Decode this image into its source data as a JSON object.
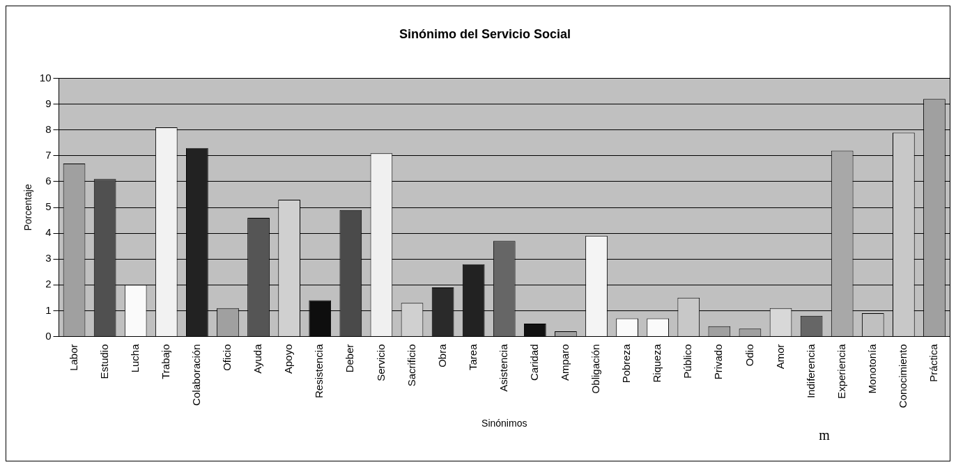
{
  "chart_data": {
    "type": "bar",
    "title": "Sinónimo del Servicio Social",
    "xlabel": "Sinónimos",
    "ylabel": "Porcentaje",
    "categories": [
      "Labor",
      "Estudio",
      "Lucha",
      "Trabajo",
      "Colaboración",
      "Oficio",
      "Ayuda",
      "Apoyo",
      "Resistencia",
      "Deber",
      "Servicio",
      "Sacrificio",
      "Obra",
      "Tarea",
      "Asistencia",
      "Caridad",
      "Amparo",
      "Obligación",
      "Pobreza",
      "Riqueza",
      "Público",
      "Privado",
      "Odio",
      "Amor",
      "Indiferencia",
      "Experiencia",
      "Monotonía",
      "Conocimiento",
      "Práctica"
    ],
    "values": [
      6.7,
      6.1,
      2.0,
      8.1,
      7.3,
      1.1,
      4.6,
      5.3,
      1.4,
      4.9,
      7.1,
      1.3,
      1.9,
      2.8,
      3.7,
      0.5,
      0.2,
      3.9,
      0.7,
      0.7,
      1.5,
      0.4,
      0.3,
      1.1,
      0.8,
      7.2,
      0.9,
      7.9,
      9.2
    ],
    "colors": [
      "#a0a0a0",
      "#505050",
      "#fafafa",
      "#f2f2f2",
      "#222222",
      "#a0a0a0",
      "#555555",
      "#d0d0d0",
      "#0e0e0e",
      "#4a4a4a",
      "#f0f0f0",
      "#d0d0d0",
      "#2a2a2a",
      "#222222",
      "#666666",
      "#111111",
      "#a0a0a0",
      "#f4f4f4",
      "#fafafa",
      "#fafafa",
      "#c8c8c8",
      "#a0a0a0",
      "#a0a0a0",
      "#d8d8d8",
      "#666666",
      "#a8a8a8",
      "#c0c0c0",
      "#c8c8c8",
      "#a0a0a0"
    ],
    "ylim": [
      0,
      10
    ],
    "yticks": [
      0,
      1,
      2,
      3,
      4,
      5,
      6,
      7,
      8,
      9,
      10
    ],
    "grid": "y",
    "legend": false,
    "annotations": [
      "m"
    ]
  }
}
